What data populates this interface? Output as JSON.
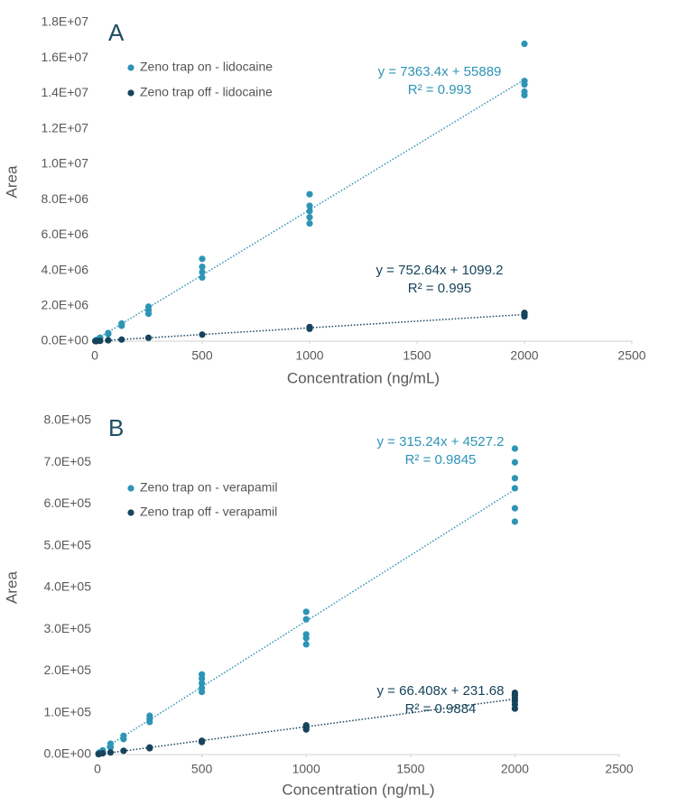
{
  "chart_data": [
    {
      "type": "scatter",
      "panel": "A",
      "x_label": "Concentration (ng/mL)",
      "y_label": "Area",
      "xlim": [
        0,
        2500
      ],
      "xticks": [
        0,
        500,
        1000,
        1500,
        2000,
        2500
      ],
      "ylim": [
        0,
        18000000
      ],
      "yticks": [
        {
          "value": 0,
          "label": "0.0E+00"
        },
        {
          "value": 2000000,
          "label": "2.0E+06"
        },
        {
          "value": 4000000,
          "label": "4.0E+06"
        },
        {
          "value": 6000000,
          "label": "6.0E+06"
        },
        {
          "value": 8000000,
          "label": "8.0E+06"
        },
        {
          "value": 10000000,
          "label": "1.0E+07"
        },
        {
          "value": 12000000,
          "label": "1.2E+07"
        },
        {
          "value": 14000000,
          "label": "1.4E+07"
        },
        {
          "value": 16000000,
          "label": "1.6E+07"
        },
        {
          "value": 18000000,
          "label": "1.8E+07"
        }
      ],
      "legend": "upper left",
      "grid": false,
      "series": [
        {
          "name": "Zeno trap on - lidocaine",
          "color": "#2e94b6",
          "x": [
            2.5,
            5,
            10,
            10,
            25,
            25,
            62.5,
            62.5,
            125,
            125,
            250,
            250,
            250,
            500,
            500,
            500,
            500,
            1000,
            1000,
            1000,
            1000,
            1000,
            2000,
            2000,
            2000,
            2000,
            2000
          ],
          "values": [
            20000,
            40000,
            80000,
            70000,
            200000,
            180000,
            460000,
            400000,
            1000000,
            870000,
            1950000,
            1750000,
            1550000,
            4650000,
            4200000,
            3900000,
            3600000,
            8300000,
            7650000,
            7350000,
            7000000,
            6650000,
            16800000,
            14700000,
            14500000,
            14100000,
            13900000
          ],
          "trendline": {
            "slope": 7363.4,
            "intercept": 55889
          },
          "equation": "y = 7363.4x + 55889",
          "r2": "R² = 0.993"
        },
        {
          "name": "Zeno trap off - lidocaine",
          "color": "#16445c",
          "x": [
            2.5,
            5,
            10,
            25,
            62.5,
            125,
            250,
            500,
            1000,
            1000,
            1000,
            2000,
            2000,
            2000
          ],
          "values": [
            2000,
            4000,
            8000,
            20000,
            50000,
            90000,
            190000,
            370000,
            800000,
            750000,
            700000,
            1600000,
            1500000,
            1400000
          ],
          "trendline": {
            "slope": 752.64,
            "intercept": 1099.2
          },
          "equation": "y = 752.64x + 1099.2",
          "r2": "R² = 0.995"
        }
      ]
    },
    {
      "type": "scatter",
      "panel": "B",
      "x_label": "Concentration (ng/mL)",
      "y_label": "Area",
      "xlim": [
        0,
        2500
      ],
      "xticks": [
        0,
        500,
        1000,
        1500,
        2000,
        2500
      ],
      "ylim": [
        0,
        800000
      ],
      "yticks": [
        {
          "value": 0,
          "label": "0.0E+00"
        },
        {
          "value": 100000,
          "label": "1.0E+05"
        },
        {
          "value": 200000,
          "label": "2.0E+05"
        },
        {
          "value": 300000,
          "label": "3.0E+05"
        },
        {
          "value": 400000,
          "label": "4.0E+05"
        },
        {
          "value": 500000,
          "label": "5.0E+05"
        },
        {
          "value": 600000,
          "label": "6.0E+05"
        },
        {
          "value": 700000,
          "label": "7.0E+05"
        },
        {
          "value": 800000,
          "label": "8.0E+05"
        }
      ],
      "legend": "upper left",
      "grid": false,
      "series": [
        {
          "name": "Zeno trap on - verapamil",
          "color": "#2e94b6",
          "x": [
            5,
            10,
            25,
            25,
            62.5,
            62.5,
            125,
            125,
            250,
            250,
            250,
            500,
            500,
            500,
            500,
            500,
            1000,
            1000,
            1000,
            1000,
            1000,
            2000,
            2000,
            2000,
            2000,
            2000,
            2000
          ],
          "values": [
            3000,
            5000,
            10000,
            8000,
            26000,
            17000,
            45000,
            37000,
            93000,
            85000,
            78000,
            192000,
            182000,
            171000,
            160000,
            150000,
            342000,
            324000,
            288000,
            279000,
            264000,
            733000,
            700000,
            662000,
            638000,
            590000,
            558000
          ],
          "trendline": {
            "slope": 315.24,
            "intercept": 4527.2
          },
          "equation": "y = 315.24x + 4527.2",
          "r2": "R² = 0.9845"
        },
        {
          "name": "Zeno trap off - verapamil",
          "color": "#16445c",
          "x": [
            5,
            10,
            25,
            62.5,
            125,
            250,
            250,
            500,
            500,
            1000,
            1000,
            1000,
            2000,
            2000,
            2000,
            2000,
            2000,
            2000
          ],
          "values": [
            1000,
            2000,
            3000,
            5000,
            9000,
            17000,
            15000,
            33000,
            30000,
            70000,
            65000,
            60000,
            148000,
            142000,
            135000,
            128000,
            120000,
            110000
          ],
          "trendline": {
            "slope": 66.408,
            "intercept": 231.68
          },
          "equation": "y = 66.408x + 231.68",
          "r2": "R² = 0.9884"
        }
      ]
    }
  ]
}
